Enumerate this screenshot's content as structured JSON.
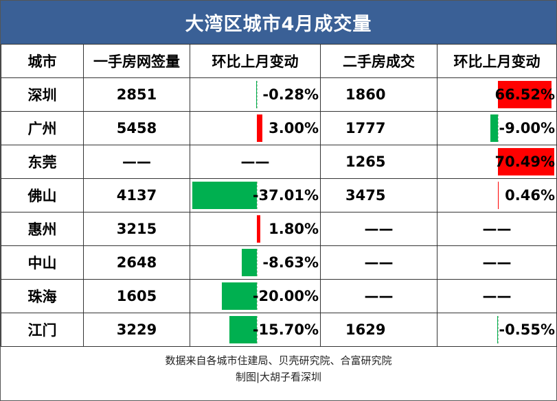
{
  "title": "大湾区城市4月成交量",
  "headers": [
    "城市",
    "一手房网签量",
    "环比上月变动",
    "二手房成交",
    "环比上月变动"
  ],
  "dash": "——",
  "rows": [
    {
      "city": "深圳",
      "new": "2851",
      "new_chg": "-0.28%",
      "new_chg_val": -0.28,
      "second": "1860",
      "second_chg": "66.52%",
      "second_chg_val": 66.52
    },
    {
      "city": "广州",
      "new": "5458",
      "new_chg": "3.00%",
      "new_chg_val": 3.0,
      "second": "1777",
      "second_chg": "-9.00%",
      "second_chg_val": -9.0
    },
    {
      "city": "东莞",
      "new": "——",
      "new_chg": "——",
      "new_chg_val": null,
      "second": "1265",
      "second_chg": "70.49%",
      "second_chg_val": 70.49
    },
    {
      "city": "佛山",
      "new": "4137",
      "new_chg": "-37.01%",
      "new_chg_val": -37.01,
      "second": "3475",
      "second_chg": "0.46%",
      "second_chg_val": 0.46
    },
    {
      "city": "惠州",
      "new": "3215",
      "new_chg": "1.80%",
      "new_chg_val": 1.8,
      "second": "——",
      "second_chg": "——",
      "second_chg_val": null
    },
    {
      "city": "中山",
      "new": "2648",
      "new_chg": "-8.63%",
      "new_chg_val": -8.63,
      "second": "——",
      "second_chg": "——",
      "second_chg_val": null
    },
    {
      "city": "珠海",
      "new": "1605",
      "new_chg": "-20.00%",
      "new_chg_val": -20.0,
      "second": "——",
      "second_chg": "——",
      "second_chg_val": null
    },
    {
      "city": "江门",
      "new": "3229",
      "new_chg": "-15.70%",
      "new_chg_val": -15.7,
      "second": "1629",
      "second_chg": "-0.55%",
      "second_chg_val": -0.55
    }
  ],
  "footer": {
    "source": "数据来自各城市住建局、贝壳研究院、合富研究院",
    "credit": "制图|大胡子看深圳"
  },
  "colors": {
    "title_bg": "#3a6096",
    "positive_bar": "#ff0000",
    "negative_bar": "#00b050"
  },
  "chart_data": {
    "type": "table",
    "title": "大湾区城市4月成交量",
    "columns": [
      "城市",
      "一手房网签量",
      "环比上月变动",
      "二手房成交",
      "环比上月变动"
    ],
    "rows": [
      [
        "深圳",
        2851,
        -0.28,
        1860,
        66.52
      ],
      [
        "广州",
        5458,
        3.0,
        1777,
        -9.0
      ],
      [
        "东莞",
        null,
        null,
        1265,
        70.49
      ],
      [
        "佛山",
        4137,
        -37.01,
        3475,
        0.46
      ],
      [
        "惠州",
        3215,
        1.8,
        null,
        null
      ],
      [
        "中山",
        2648,
        -8.63,
        null,
        null
      ],
      [
        "珠海",
        1605,
        -20.0,
        null,
        null
      ],
      [
        "江门",
        3229,
        -15.7,
        1629,
        -0.55
      ]
    ]
  }
}
